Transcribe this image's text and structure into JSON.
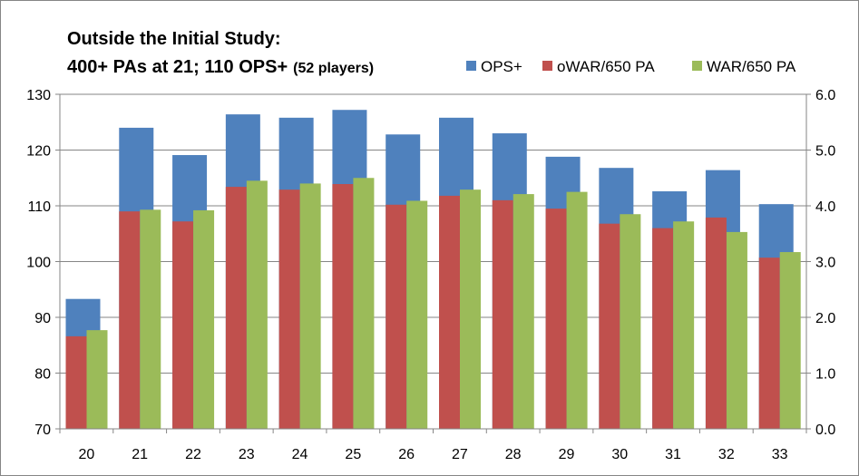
{
  "chart_data": {
    "type": "bar",
    "title_line1": "Outside the Initial Study:",
    "title_line2_main": "400+ PAs at 21; 110 OPS+",
    "title_line2_sub": "(52 players)",
    "xlabel": "",
    "ylabel": "",
    "categories": [
      "20",
      "21",
      "22",
      "23",
      "24",
      "25",
      "26",
      "27",
      "28",
      "29",
      "30",
      "31",
      "32",
      "33"
    ],
    "legend_position": "top-right",
    "grid": true,
    "y_left": {
      "min": 70,
      "max": 130,
      "ticks": [
        "70",
        "80",
        "90",
        "100",
        "110",
        "120",
        "130"
      ]
    },
    "y_right": {
      "min": 0,
      "max": 6,
      "ticks": [
        "0.0",
        "1.0",
        "2.0",
        "3.0",
        "4.0",
        "5.0",
        "6.0"
      ]
    },
    "series": [
      {
        "name": "OPS+",
        "axis": "left",
        "color": "#4f81bd",
        "values": [
          93.3,
          124.0,
          119.1,
          126.4,
          125.8,
          127.2,
          122.8,
          125.8,
          123.0,
          118.8,
          116.8,
          112.6,
          116.4,
          110.3
        ]
      },
      {
        "name": "oWAR/650 PA",
        "axis": "right",
        "color": "#c0504d",
        "values": [
          1.66,
          3.9,
          3.72,
          4.34,
          4.29,
          4.39,
          4.02,
          4.18,
          4.1,
          3.95,
          3.68,
          3.6,
          3.79,
          3.07
        ]
      },
      {
        "name": "WAR/650 PA",
        "axis": "right",
        "color": "#9bbb59",
        "values": [
          1.77,
          3.93,
          3.92,
          4.45,
          4.4,
          4.5,
          4.09,
          4.29,
          4.21,
          4.25,
          3.85,
          3.72,
          3.53,
          3.17
        ]
      }
    ]
  }
}
